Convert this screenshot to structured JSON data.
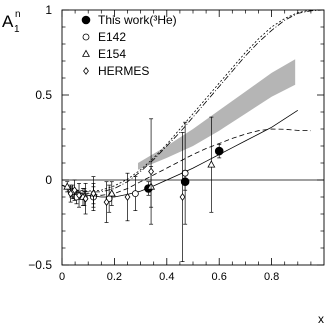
{
  "chart_data": {
    "type": "scatter",
    "ylabel_main": "A",
    "ylabel_sub": "1",
    "ylabel_sup": "n",
    "xlabel": "x",
    "xlim": [
      0,
      1
    ],
    "ylim": [
      -0.5,
      1
    ],
    "x_ticks": [
      {
        "value": 0,
        "label": "0"
      },
      {
        "value": 0.2,
        "label": "0.2"
      },
      {
        "value": 0.4,
        "label": "0.4"
      },
      {
        "value": 0.6,
        "label": "0.6"
      },
      {
        "value": 0.8,
        "label": "0.8"
      }
    ],
    "y_ticks": [
      {
        "value": -0.5,
        "label": "−0.5"
      },
      {
        "value": 0,
        "label": "0"
      },
      {
        "value": 0.5,
        "label": "0.5"
      },
      {
        "value": 1,
        "label": "1"
      }
    ],
    "zero_line": true,
    "legend": [
      {
        "marker": "filled-circle",
        "label": "This work(³He)"
      },
      {
        "marker": "open-circle",
        "label": "E142"
      },
      {
        "marker": "open-triangle",
        "label": "E154"
      },
      {
        "marker": "open-diamond",
        "label": "HERMES"
      }
    ],
    "series": [
      {
        "name": "This work(³He)",
        "marker": "filled-circle",
        "points": [
          {
            "x": 0.33,
            "y": -0.05,
            "err": 0.04
          },
          {
            "x": 0.47,
            "y": -0.01,
            "err": 0.05
          },
          {
            "x": 0.6,
            "y": 0.17,
            "err": 0.04
          }
        ]
      },
      {
        "name": "E142",
        "marker": "open-circle",
        "points": [
          {
            "x": 0.035,
            "y": -0.07,
            "err": 0.03
          },
          {
            "x": 0.055,
            "y": -0.1,
            "err": 0.04
          },
          {
            "x": 0.085,
            "y": -0.1,
            "err": 0.05
          },
          {
            "x": 0.12,
            "y": -0.1,
            "err": 0.06
          },
          {
            "x": 0.18,
            "y": -0.11,
            "err": 0.08
          },
          {
            "x": 0.28,
            "y": -0.08,
            "err": 0.1
          },
          {
            "x": 0.47,
            "y": 0.04,
            "err": 0.3
          }
        ]
      },
      {
        "name": "E154",
        "marker": "open-triangle",
        "points": [
          {
            "x": 0.02,
            "y": -0.04,
            "err": 0.03
          },
          {
            "x": 0.04,
            "y": -0.07,
            "err": 0.04
          },
          {
            "x": 0.08,
            "y": -0.1,
            "err": 0.05
          },
          {
            "x": 0.12,
            "y": -0.08,
            "err": 0.06
          },
          {
            "x": 0.19,
            "y": -0.08,
            "err": 0.07
          },
          {
            "x": 0.34,
            "y": -0.04,
            "err": 0.12
          },
          {
            "x": 0.57,
            "y": 0.09,
            "err": 0.28
          }
        ]
      },
      {
        "name": "HERMES",
        "marker": "open-diamond",
        "points": [
          {
            "x": 0.033,
            "y": -0.08,
            "err": 0.05
          },
          {
            "x": 0.048,
            "y": -0.06,
            "err": 0.06
          },
          {
            "x": 0.065,
            "y": -0.09,
            "err": 0.07
          },
          {
            "x": 0.09,
            "y": -0.11,
            "err": 0.09
          },
          {
            "x": 0.12,
            "y": -0.08,
            "err": 0.1
          },
          {
            "x": 0.17,
            "y": -0.13,
            "err": 0.12
          },
          {
            "x": 0.25,
            "y": -0.1,
            "err": 0.14
          },
          {
            "x": 0.34,
            "y": 0.05,
            "err": 0.31
          },
          {
            "x": 0.46,
            "y": -0.1,
            "err": 0.38
          }
        ]
      }
    ],
    "curves": [
      {
        "style": "solid",
        "points": [
          [
            0.0,
            -0.03
          ],
          [
            0.05,
            -0.07
          ],
          [
            0.1,
            -0.09
          ],
          [
            0.15,
            -0.1
          ],
          [
            0.2,
            -0.1
          ],
          [
            0.25,
            -0.085
          ],
          [
            0.3,
            -0.065
          ],
          [
            0.35,
            -0.035
          ],
          [
            0.4,
            0.0
          ],
          [
            0.45,
            0.035
          ],
          [
            0.5,
            0.07
          ],
          [
            0.55,
            0.11
          ],
          [
            0.6,
            0.15
          ],
          [
            0.65,
            0.19
          ],
          [
            0.7,
            0.23
          ],
          [
            0.75,
            0.27
          ],
          [
            0.8,
            0.31
          ],
          [
            0.85,
            0.36
          ],
          [
            0.9,
            0.41
          ]
        ]
      },
      {
        "style": "dashed",
        "points": [
          [
            0.0,
            -0.03
          ],
          [
            0.05,
            -0.065
          ],
          [
            0.1,
            -0.08
          ],
          [
            0.15,
            -0.09
          ],
          [
            0.2,
            -0.08
          ],
          [
            0.25,
            -0.05
          ],
          [
            0.3,
            -0.01
          ],
          [
            0.35,
            0.03
          ],
          [
            0.4,
            0.07
          ],
          [
            0.45,
            0.11
          ],
          [
            0.5,
            0.15
          ],
          [
            0.55,
            0.185
          ],
          [
            0.6,
            0.215
          ],
          [
            0.65,
            0.245
          ],
          [
            0.7,
            0.27
          ],
          [
            0.75,
            0.29
          ],
          [
            0.8,
            0.3
          ],
          [
            0.85,
            0.298
          ],
          [
            0.9,
            0.292
          ],
          [
            0.95,
            0.29
          ]
        ]
      },
      {
        "style": "dashdot",
        "points": [
          [
            0.0,
            -0.03
          ],
          [
            0.05,
            -0.06
          ],
          [
            0.1,
            -0.07
          ],
          [
            0.15,
            -0.07
          ],
          [
            0.2,
            -0.05
          ],
          [
            0.25,
            -0.01
          ],
          [
            0.3,
            0.05
          ],
          [
            0.35,
            0.12
          ],
          [
            0.4,
            0.2
          ],
          [
            0.45,
            0.28
          ],
          [
            0.5,
            0.37
          ],
          [
            0.55,
            0.46
          ],
          [
            0.6,
            0.55
          ],
          [
            0.65,
            0.64
          ],
          [
            0.7,
            0.73
          ],
          [
            0.75,
            0.81
          ],
          [
            0.8,
            0.88
          ],
          [
            0.85,
            0.94
          ],
          [
            0.9,
            0.98
          ],
          [
            0.95,
            0.995
          ],
          [
            1.0,
            1.0
          ]
        ]
      },
      {
        "style": "dotted",
        "points": [
          [
            0.0,
            -0.03
          ],
          [
            0.05,
            -0.06
          ],
          [
            0.1,
            -0.065
          ],
          [
            0.15,
            -0.06
          ],
          [
            0.2,
            -0.035
          ],
          [
            0.25,
            0.005
          ],
          [
            0.3,
            0.06
          ],
          [
            0.35,
            0.13
          ],
          [
            0.4,
            0.21
          ],
          [
            0.45,
            0.3
          ],
          [
            0.5,
            0.39
          ],
          [
            0.55,
            0.48
          ],
          [
            0.6,
            0.57
          ],
          [
            0.65,
            0.66
          ],
          [
            0.7,
            0.75
          ],
          [
            0.75,
            0.83
          ],
          [
            0.8,
            0.9
          ],
          [
            0.85,
            0.95
          ],
          [
            0.9,
            0.985
          ],
          [
            0.95,
            1.0
          ]
        ]
      }
    ],
    "band": {
      "lower": [
        [
          0.29,
          0.06
        ],
        [
          0.4,
          0.13
        ],
        [
          0.5,
          0.2
        ],
        [
          0.6,
          0.29
        ],
        [
          0.7,
          0.39
        ],
        [
          0.8,
          0.49
        ],
        [
          0.89,
          0.56
        ]
      ],
      "upper": [
        [
          0.29,
          0.1
        ],
        [
          0.4,
          0.2
        ],
        [
          0.5,
          0.3
        ],
        [
          0.6,
          0.41
        ],
        [
          0.7,
          0.52
        ],
        [
          0.8,
          0.63
        ],
        [
          0.89,
          0.71
        ]
      ],
      "color": "#b5b5b5"
    }
  }
}
